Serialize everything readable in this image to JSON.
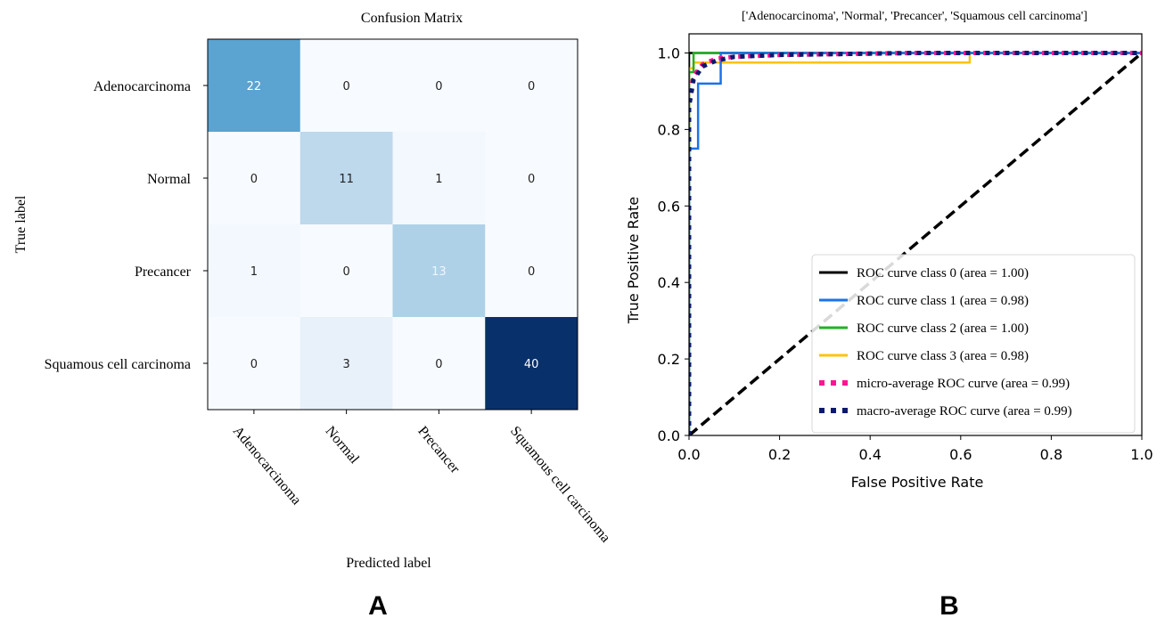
{
  "chart_data": [
    {
      "type": "heatmap",
      "title": "Confusion Matrix",
      "xlabel": "Predicted label",
      "ylabel": "True label",
      "rows": [
        "Adenocarcinoma",
        "Normal",
        "Precancer",
        "Squamous cell carcinoma"
      ],
      "cols": [
        "Adenocarcinoma",
        "Normal",
        "Precancer",
        "Squamous cell carcinoma"
      ],
      "values": [
        [
          22,
          0,
          0,
          0
        ],
        [
          0,
          11,
          1,
          0
        ],
        [
          1,
          0,
          13,
          0
        ],
        [
          0,
          3,
          0,
          40
        ]
      ],
      "colormap": "Blues",
      "panel_label": "A"
    },
    {
      "type": "line",
      "title": "['Adenocarcinoma', 'Normal', 'Precancer', 'Squamous cell carcinoma']",
      "xlabel": "False Positive Rate",
      "ylabel": "True Positive Rate",
      "xlim": [
        0.0,
        1.0
      ],
      "ylim": [
        0.0,
        1.05
      ],
      "xticks": [
        "0.0",
        "0.2",
        "0.4",
        "0.6",
        "0.8",
        "1.0"
      ],
      "yticks": [
        "0.0",
        "0.2",
        "0.4",
        "0.6",
        "0.8",
        "1.0"
      ],
      "legend_position": "lower-right",
      "panel_label": "B",
      "series": [
        {
          "name": "ROC curve class 0 (area = 1.00)",
          "color": "#000000",
          "style": "solid",
          "x": [
            0.0,
            0.0,
            1.0
          ],
          "y": [
            0.0,
            1.0,
            1.0
          ]
        },
        {
          "name": "ROC curve class 1 (area = 0.98)",
          "color": "#1a73e8",
          "style": "solid",
          "x": [
            0.0,
            0.0,
            0.02,
            0.02,
            0.07,
            0.07,
            1.0
          ],
          "y": [
            0.0,
            0.75,
            0.75,
            0.92,
            0.92,
            1.0,
            1.0
          ]
        },
        {
          "name": "ROC curve class 2 (area = 1.00)",
          "color": "#22b222",
          "style": "solid",
          "x": [
            0.0,
            0.0,
            0.01,
            0.01,
            1.0
          ],
          "y": [
            0.0,
            0.95,
            0.95,
            1.0,
            1.0
          ]
        },
        {
          "name": "ROC curve class 3 (area = 0.98)",
          "color": "#ffc20e",
          "style": "solid",
          "x": [
            0.0,
            0.0,
            0.01,
            0.01,
            0.62,
            0.62,
            1.0
          ],
          "y": [
            0.0,
            0.96,
            0.96,
            0.975,
            0.975,
            1.0,
            1.0
          ]
        },
        {
          "name": "micro-average ROC curve (area = 0.99)",
          "color": "#ff1493",
          "style": "dotted",
          "x": [
            0.0,
            0.0,
            0.01,
            0.03,
            0.06,
            0.1,
            0.2,
            0.5,
            1.0
          ],
          "y": [
            0.0,
            0.88,
            0.94,
            0.97,
            0.985,
            0.99,
            0.995,
            1.0,
            1.0
          ]
        },
        {
          "name": "macro-average ROC curve (area = 0.99)",
          "color": "#0b1a6e",
          "style": "dotted",
          "x": [
            0.0,
            0.0,
            0.01,
            0.03,
            0.06,
            0.1,
            0.2,
            0.5,
            1.0
          ],
          "y": [
            0.0,
            0.86,
            0.93,
            0.965,
            0.98,
            0.99,
            0.995,
            1.0,
            1.0
          ]
        },
        {
          "name": "",
          "color": "#000000",
          "style": "dashed",
          "x": [
            0.0,
            1.0
          ],
          "y": [
            0.0,
            1.0
          ]
        }
      ]
    }
  ]
}
